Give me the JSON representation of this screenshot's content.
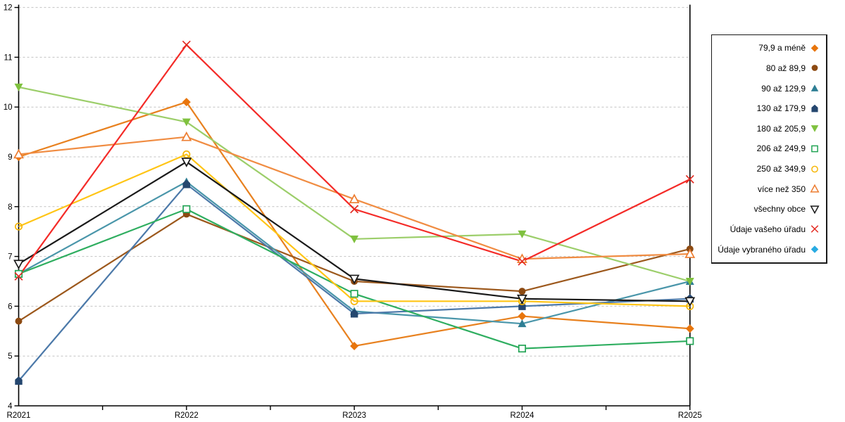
{
  "chart_data": {
    "type": "line",
    "title": "",
    "xlabel": "",
    "ylabel": "",
    "categories": [
      "R2021",
      "R2022",
      "R2023",
      "R2024",
      "R2025"
    ],
    "ylim": [
      4,
      12
    ],
    "y_ticks": [
      4,
      5,
      6,
      7,
      8,
      9,
      10,
      11,
      12
    ],
    "grid": "horizontal-dashed",
    "legend_position": "right-box",
    "series": [
      {
        "id": "79-9-a-mene",
        "name": "79,9 a méně",
        "marker": "diamond",
        "color": "#E8750C",
        "line_color": "#E8811F",
        "values": [
          9.0,
          10.1,
          5.2,
          5.8,
          5.55
        ]
      },
      {
        "id": "80-az-89-9",
        "name": "80 až 89,9",
        "marker": "circle",
        "color": "#8C4A12",
        "line_color": "#9C581C",
        "values": [
          5.7,
          7.85,
          6.5,
          6.3,
          7.15
        ]
      },
      {
        "id": "90-az-129-9",
        "name": "90 až 129,9",
        "marker": "triangle-up",
        "color": "#2E7E94",
        "line_color": "#4A96AA",
        "values": [
          6.65,
          8.5,
          5.9,
          5.65,
          6.5
        ]
      },
      {
        "id": "130-az-179-9",
        "name": "130 až 179,9",
        "marker": "pentagon",
        "color": "#25476F",
        "line_color": "#4C79A9",
        "values": [
          4.5,
          8.45,
          5.85,
          6.0,
          6.15
        ]
      },
      {
        "id": "180-az-205-9",
        "name": "180 až 205,9",
        "marker": "triangle-down",
        "color": "#7FC13E",
        "line_color": "#9CCE6A",
        "values": [
          10.4,
          9.7,
          7.35,
          7.45,
          6.5
        ]
      },
      {
        "id": "206-az-249-9",
        "name": "206 až 249,9",
        "marker": "square-open",
        "color": "#23A455",
        "line_color": "#2FAE60",
        "values": [
          6.65,
          7.95,
          6.25,
          5.15,
          5.3
        ]
      },
      {
        "id": "250-az-349-9",
        "name": "250 až 349,9",
        "marker": "circle-open",
        "color": "#F6B70A",
        "line_color": "#FFC516",
        "values": [
          7.6,
          9.05,
          6.1,
          6.1,
          6.0
        ]
      },
      {
        "id": "vice-nez-350",
        "name": "více než 350",
        "marker": "triangle-up-open",
        "color": "#ED7D31",
        "line_color": "#F08C42",
        "values": [
          9.05,
          9.4,
          8.15,
          6.95,
          7.05
        ]
      },
      {
        "id": "vsechny-obce",
        "name": "všechny obce",
        "marker": "triangle-down-open",
        "color": "#1A1A1A",
        "line_color": "#1A1A1A",
        "values": [
          6.85,
          8.9,
          6.55,
          6.15,
          6.1
        ]
      },
      {
        "id": "udaje-vaseho-uradu",
        "name": "Údaje vašeho úřadu",
        "marker": "x",
        "color": "#E32B22",
        "line_color": "#F42B28",
        "values": [
          6.6,
          11.25,
          7.95,
          6.9,
          8.55
        ]
      },
      {
        "id": "udaje-vybraneho-uradu",
        "name": "Údaje vybraného úřadu",
        "marker": "diamond",
        "color": "#29ABE2",
        "line_color": "#29ABE2",
        "values": []
      }
    ]
  },
  "colors": {
    "grid": "#C2C2C2",
    "axis": "#000000",
    "background": "#FFFFFF"
  }
}
